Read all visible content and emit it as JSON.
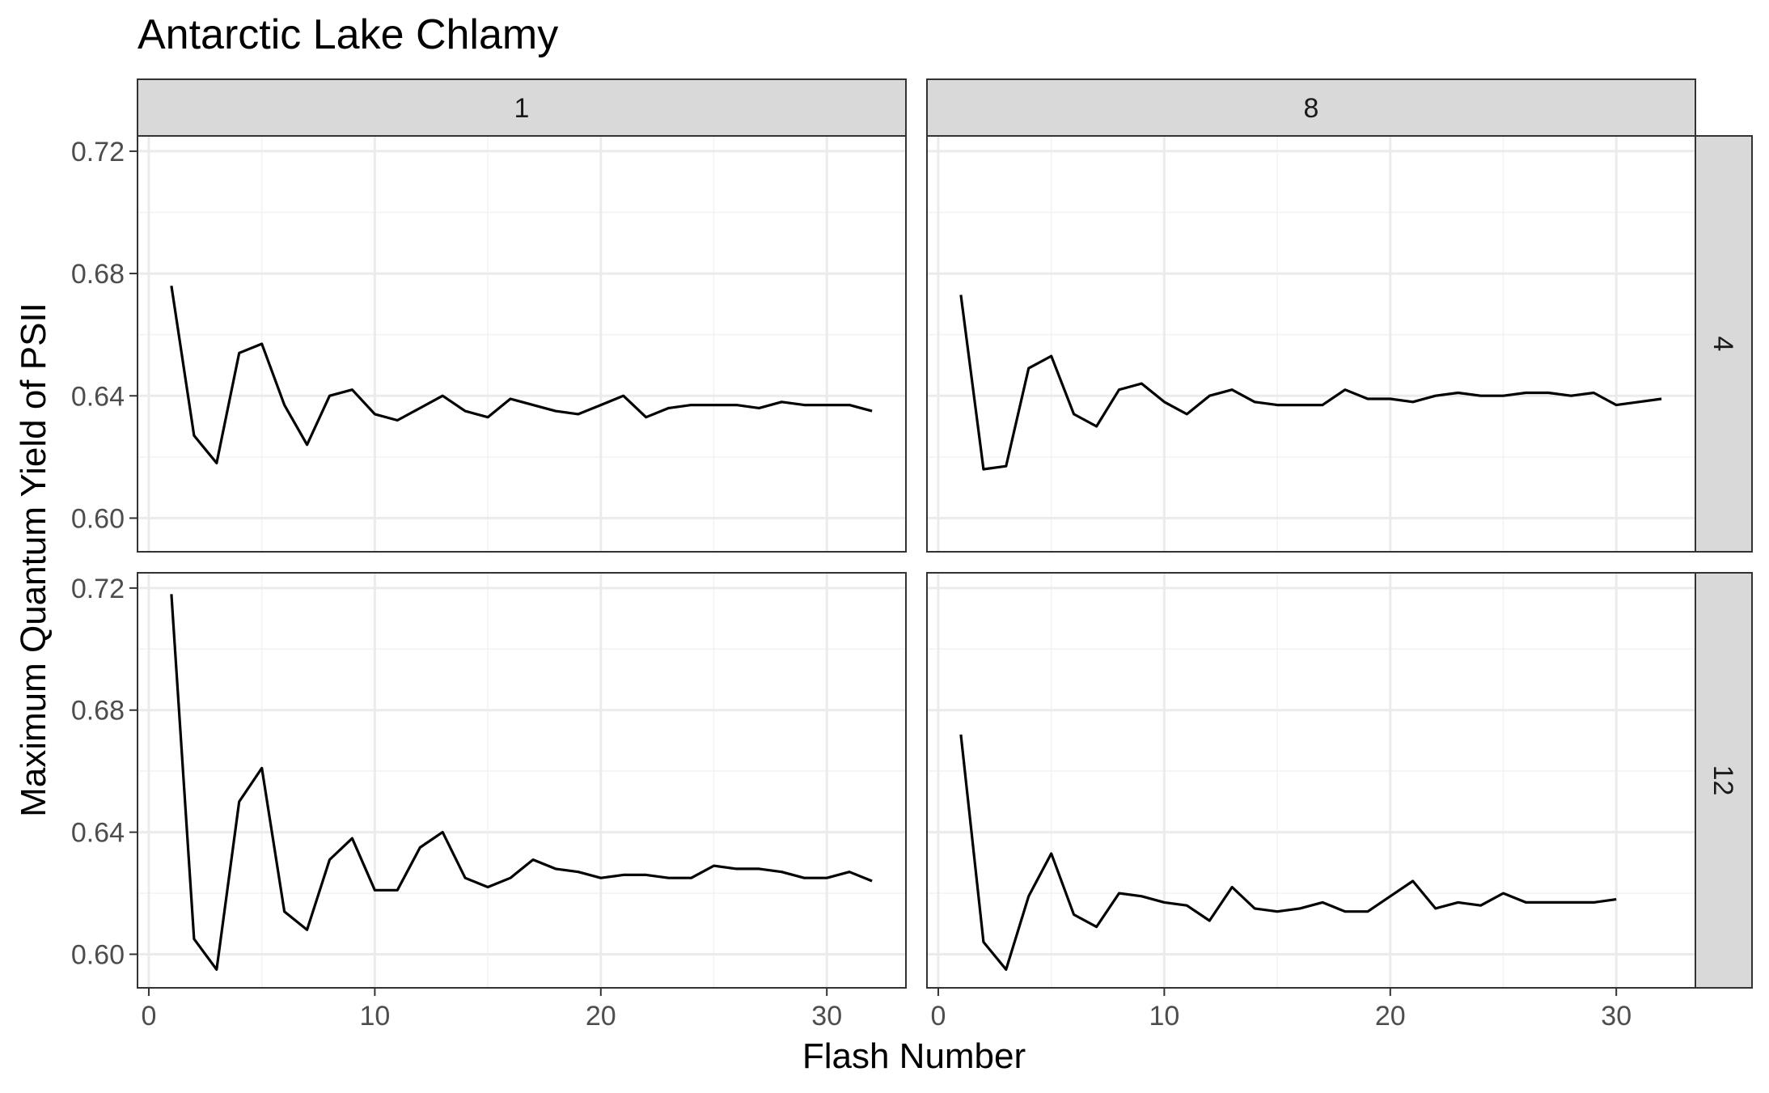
{
  "chart_data": {
    "type": "line",
    "title": "Antarctic Lake Chlamy",
    "xlabel": "Flash Number",
    "ylabel": "Maximum Quantum Yield of PSII",
    "xlim": [
      -0.5,
      33.5
    ],
    "ylim": [
      0.589,
      0.725
    ],
    "x_ticks": [
      0,
      10,
      20,
      30
    ],
    "y_ticks": [
      0.6,
      0.64,
      0.68,
      0.72
    ],
    "y_tick_labels": [
      "0.60",
      "0.64",
      "0.68",
      "0.72"
    ],
    "grid": true,
    "col_strips": [
      "1",
      "8"
    ],
    "row_strips": [
      "4",
      "12"
    ],
    "panels": [
      {
        "col": "1",
        "row": "4",
        "x": [
          1,
          2,
          3,
          4,
          5,
          6,
          7,
          8,
          9,
          10,
          11,
          12,
          13,
          14,
          15,
          16,
          17,
          18,
          19,
          20,
          21,
          22,
          23,
          24,
          25,
          26,
          27,
          28,
          29,
          30,
          31,
          32
        ],
        "y": [
          0.676,
          0.627,
          0.618,
          0.654,
          0.657,
          0.637,
          0.624,
          0.64,
          0.642,
          0.634,
          0.632,
          0.636,
          0.64,
          0.635,
          0.633,
          0.639,
          0.637,
          0.635,
          0.634,
          0.637,
          0.64,
          0.633,
          0.636,
          0.637,
          0.637,
          0.637,
          0.636,
          0.638,
          0.637,
          0.637,
          0.637,
          0.635
        ]
      },
      {
        "col": "8",
        "row": "4",
        "x": [
          1,
          2,
          3,
          4,
          5,
          6,
          7,
          8,
          9,
          10,
          11,
          12,
          13,
          14,
          15,
          16,
          17,
          18,
          19,
          20,
          21,
          22,
          23,
          24,
          25,
          26,
          27,
          28,
          29,
          30,
          31,
          32
        ],
        "y": [
          0.673,
          0.616,
          0.617,
          0.649,
          0.653,
          0.634,
          0.63,
          0.642,
          0.644,
          0.638,
          0.634,
          0.64,
          0.642,
          0.638,
          0.637,
          0.637,
          0.637,
          0.642,
          0.639,
          0.639,
          0.638,
          0.64,
          0.641,
          0.64,
          0.64,
          0.641,
          0.641,
          0.64,
          0.641,
          0.637,
          0.638,
          0.639
        ]
      },
      {
        "col": "1",
        "row": "12",
        "x": [
          1,
          2,
          3,
          4,
          5,
          6,
          7,
          8,
          9,
          10,
          11,
          12,
          13,
          14,
          15,
          16,
          17,
          18,
          19,
          20,
          21,
          22,
          23,
          24,
          25,
          26,
          27,
          28,
          29,
          30,
          31,
          32
        ],
        "y": [
          0.718,
          0.605,
          0.595,
          0.65,
          0.661,
          0.614,
          0.608,
          0.631,
          0.638,
          0.621,
          0.621,
          0.635,
          0.64,
          0.625,
          0.622,
          0.625,
          0.631,
          0.628,
          0.627,
          0.625,
          0.626,
          0.626,
          0.625,
          0.625,
          0.629,
          0.628,
          0.628,
          0.627,
          0.625,
          0.625,
          0.627,
          0.624
        ]
      },
      {
        "col": "8",
        "row": "12",
        "x": [
          1,
          2,
          3,
          4,
          5,
          6,
          7,
          8,
          9,
          10,
          11,
          12,
          13,
          14,
          15,
          16,
          17,
          18,
          19,
          20,
          21,
          22,
          23,
          24,
          25,
          26,
          27,
          28,
          29,
          30
        ],
        "y": [
          0.672,
          0.604,
          0.595,
          0.619,
          0.633,
          0.613,
          0.609,
          0.62,
          0.619,
          0.617,
          0.616,
          0.611,
          0.622,
          0.615,
          0.614,
          0.615,
          0.617,
          0.614,
          0.614,
          0.619,
          0.624,
          0.615,
          0.617,
          0.616,
          0.62,
          0.617,
          0.617,
          0.617,
          0.617,
          0.618
        ]
      }
    ]
  }
}
